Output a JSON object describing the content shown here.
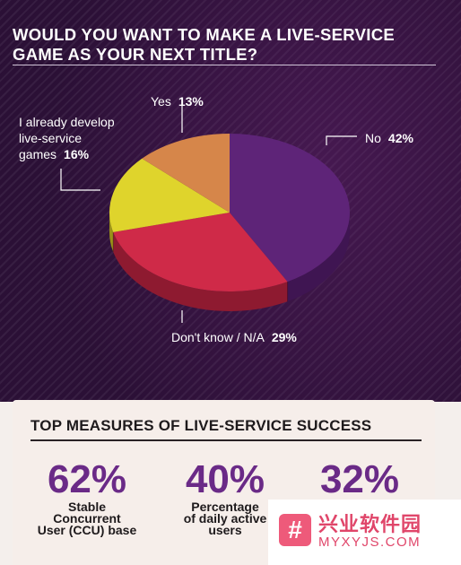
{
  "chart_data": {
    "type": "pie",
    "title": "WOULD YOU WANT TO MAKE A LIVE-SERVICE GAME AS YOUR NEXT TITLE?",
    "slices": [
      {
        "label": "No",
        "value": 42,
        "pct_text": "42%",
        "color": "#5e2478",
        "side": "#3f1552"
      },
      {
        "label": "Don't know / N/A",
        "value": 29,
        "pct_text": "29%",
        "color": "#cf2a48",
        "side": "#8e1a30"
      },
      {
        "label": "I already develop live-service games",
        "value": 16,
        "pct_text": "16%",
        "color": "#dfd42c",
        "side": "#9a9118"
      },
      {
        "label": "Yes",
        "value": 13,
        "pct_text": "13%",
        "color": "#d6864a",
        "side": "#93572c"
      }
    ],
    "label_lines": {
      "already": [
        "I already develop",
        "live-service",
        "games"
      ]
    }
  },
  "measures": {
    "title": "TOP MEASURES OF LIVE-SERVICE SUCCESS",
    "items": [
      {
        "value": "62%",
        "desc": [
          "Stable",
          "Concurrent",
          "User (CCU) base"
        ]
      },
      {
        "value": "40%",
        "desc": [
          "Percentage",
          "of daily active",
          "users"
        ]
      },
      {
        "value": "32%",
        "desc": [
          "",
          "",
          ""
        ]
      }
    ]
  },
  "watermark": {
    "icon": "#",
    "line1": "兴业软件园",
    "line2": "MYXYJS.COM"
  }
}
